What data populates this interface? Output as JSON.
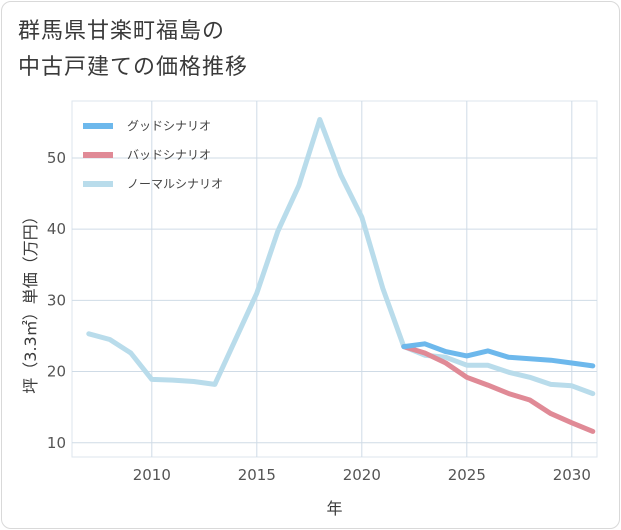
{
  "title_lines": [
    "群馬県甘楽町福島の",
    "中古戸建ての価格推移"
  ],
  "chart_data": {
    "type": "line",
    "xlabel": "年",
    "ylabel": "坪（3.3㎡）単価（万円）",
    "xlim": [
      2006.2,
      2031.2
    ],
    "ylim": [
      8,
      58
    ],
    "x_ticks": [
      2010,
      2015,
      2020,
      2025,
      2030
    ],
    "y_ticks": [
      10,
      20,
      30,
      40,
      50
    ],
    "grid": true,
    "legend_position": "top-left",
    "series": [
      {
        "name": "グッドシナリオ",
        "color": "#6db8ec",
        "x": [
          2022,
          2023,
          2024,
          2025,
          2026,
          2027,
          2028,
          2029,
          2030,
          2031
        ],
        "values": [
          23.5,
          23.9,
          22.8,
          22.2,
          22.9,
          22.0,
          21.8,
          21.6,
          21.2,
          20.8
        ]
      },
      {
        "name": "バッドシナリオ",
        "color": "#e08a96",
        "x": [
          2022,
          2023,
          2024,
          2025,
          2026,
          2027,
          2028,
          2029,
          2030,
          2031
        ],
        "values": [
          23.5,
          22.6,
          21.2,
          19.2,
          18.1,
          16.9,
          16.0,
          14.1,
          12.8,
          11.6
        ]
      },
      {
        "name": "ノーマルシナリオ",
        "color": "#b9dceb",
        "x": [
          2007,
          2008,
          2009,
          2010,
          2011,
          2012,
          2013,
          2014,
          2015,
          2016,
          2017,
          2018,
          2019,
          2020,
          2021,
          2022,
          2023,
          2024,
          2025,
          2026,
          2027,
          2028,
          2029,
          2030,
          2031
        ],
        "values": [
          25.3,
          24.5,
          22.6,
          18.9,
          18.8,
          18.6,
          18.2,
          24.6,
          31.0,
          39.7,
          46.1,
          55.4,
          47.6,
          41.7,
          31.7,
          23.5,
          22.3,
          22.0,
          20.9,
          20.9,
          19.9,
          19.2,
          18.2,
          18.0,
          16.9
        ]
      }
    ]
  }
}
